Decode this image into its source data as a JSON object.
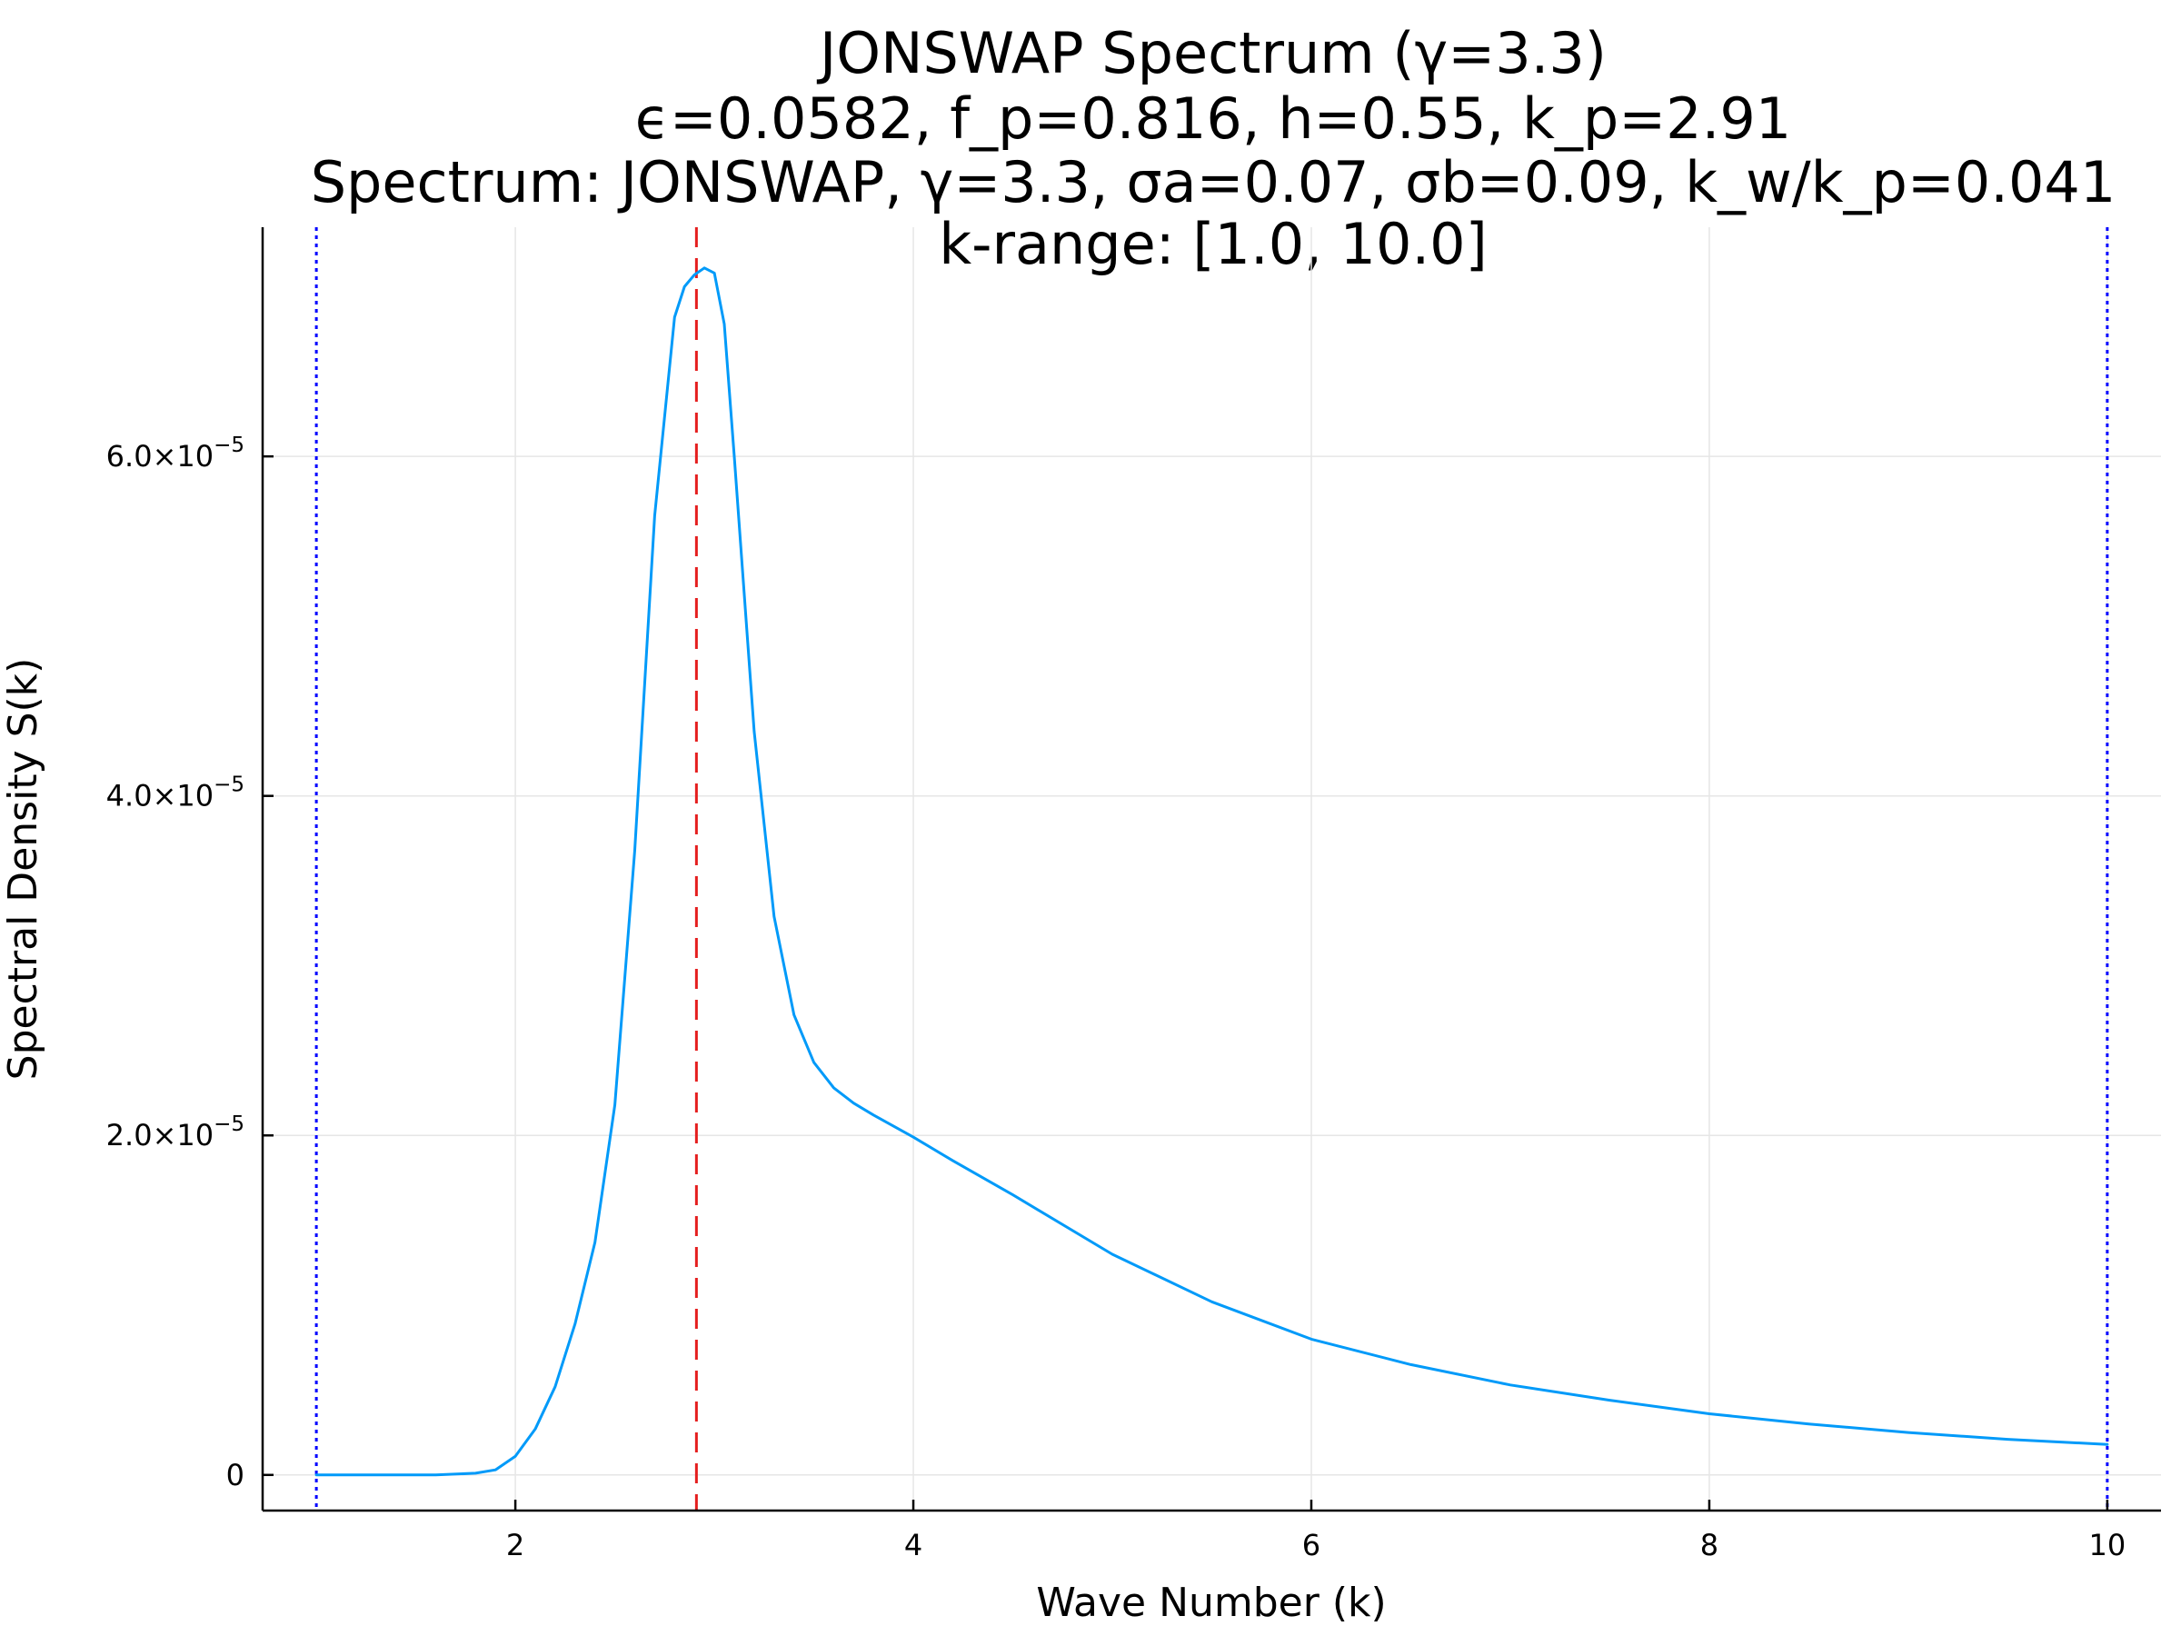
{
  "chart_data": {
    "type": "line",
    "title_lines": [
      "JONSWAP Spectrum (γ=3.3)",
      "ϵ=0.0582, f_p=0.816, h=0.55, k_p=2.91",
      "Spectrum: JONSWAP, γ=3.3, σa=0.07, σb=0.09, k_w/k_p=0.041",
      "k-range: [1.0, 10.0]"
    ],
    "xlabel": "Wave Number (k)",
    "ylabel": "Spectral Density S(k)",
    "xlim": [
      0.73,
      10.27
    ],
    "ylim": [
      -2.1e-06,
      7.35e-05
    ],
    "x_ticks": [
      2,
      4,
      6,
      8,
      10
    ],
    "x_tick_labels": [
      "2",
      "4",
      "6",
      "8",
      "10"
    ],
    "y_ticks": [
      0,
      2e-05,
      4e-05,
      6e-05
    ],
    "y_tick_labels": [
      {
        "mantissa": "0",
        "exp": ""
      },
      {
        "mantissa": "2.0×10",
        "exp": "−5"
      },
      {
        "mantissa": "4.0×10",
        "exp": "−5"
      },
      {
        "mantissa": "6.0×10",
        "exp": "−5"
      }
    ],
    "grid": true,
    "legend": "none",
    "series": [
      {
        "color": "#009af9",
        "style": "solid",
        "x": [
          1.0,
          1.2,
          1.4,
          1.6,
          1.8,
          1.9,
          2.0,
          2.1,
          2.2,
          2.3,
          2.4,
          2.5,
          2.6,
          2.7,
          2.8,
          2.85,
          2.9,
          2.95,
          3.0,
          3.05,
          3.1,
          3.2,
          3.3,
          3.4,
          3.5,
          3.6,
          3.7,
          3.8,
          4.0,
          4.2,
          4.5,
          5.0,
          5.5,
          6.0,
          6.5,
          7.0,
          7.5,
          8.0,
          8.5,
          9.0,
          9.5,
          10.0
        ],
        "y": [
          0,
          0,
          0,
          0,
          1e-07,
          3e-07,
          1.1e-06,
          2.7e-06,
          5.2e-06,
          8.9e-06,
          1.37e-05,
          2.18e-05,
          3.68e-05,
          5.65e-05,
          6.82e-05,
          7e-05,
          7.07e-05,
          7.11e-05,
          7.08e-05,
          6.78e-05,
          6e-05,
          4.38e-05,
          3.29e-05,
          2.71e-05,
          2.43e-05,
          2.28e-05,
          2.19e-05,
          2.12e-05,
          1.99e-05,
          1.85e-05,
          1.65e-05,
          1.3e-05,
          1.02e-05,
          8e-06,
          6.5e-06,
          5.3e-06,
          4.4e-06,
          3.6e-06,
          3e-06,
          2.5e-06,
          2.1e-06,
          1.8e-06
        ]
      }
    ],
    "vlines": [
      {
        "x": 2.91,
        "color": "#e51e1e",
        "style": "dashed"
      },
      {
        "x": 1.0,
        "color": "#0000ff",
        "style": "dotted"
      },
      {
        "x": 10.0,
        "color": "#0000ff",
        "style": "dotted"
      }
    ]
  }
}
